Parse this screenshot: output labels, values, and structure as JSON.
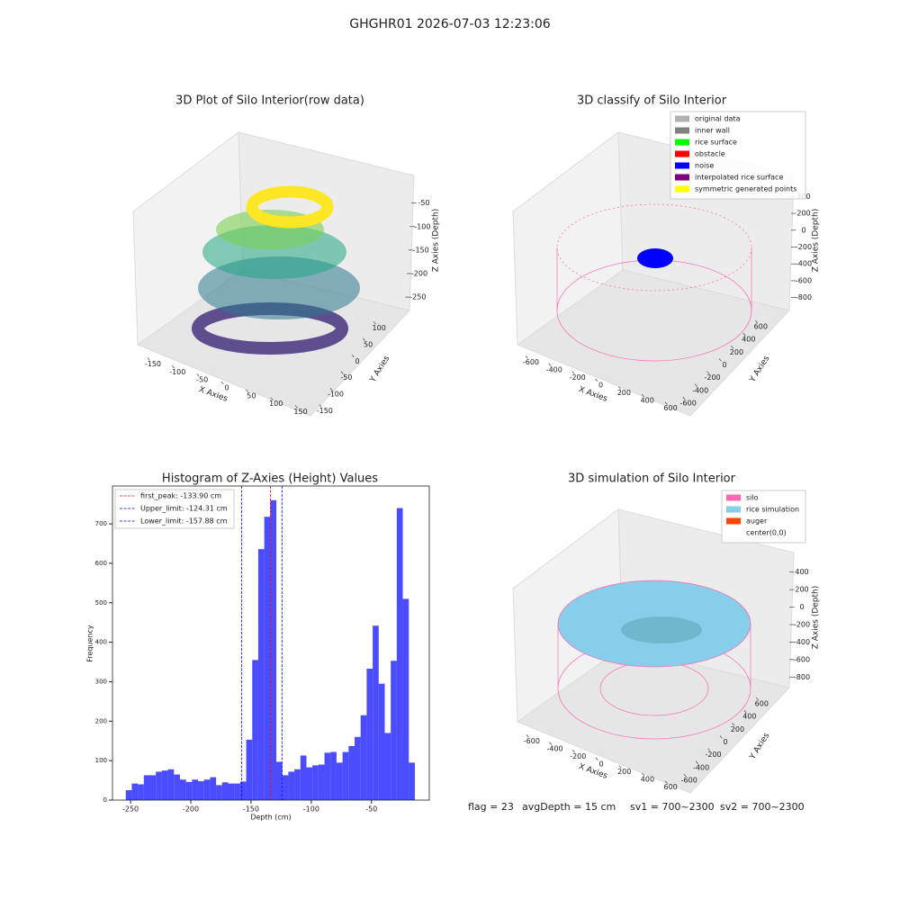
{
  "title": "GHGHR01 2026-07-03 12:23:06",
  "annotations": [
    "flag = 23",
    "avgDepth = 15 cm",
    "sv1 = 700~2300",
    "sv2 = 700~2300"
  ],
  "chart_data": [
    {
      "type": "scatter3d",
      "title": "3D Plot of Silo Interior(row data)",
      "xlabel": "X Axies",
      "ylabel": "Y Axies",
      "zlabel": "Z Axies (Depth)",
      "xlim": [
        -170,
        170
      ],
      "ylim": [
        -170,
        120
      ],
      "zlim": [
        -290,
        -20
      ],
      "xticks": [
        -150,
        -100,
        -50,
        0,
        50,
        100,
        150
      ],
      "yticks": [
        -150,
        -100,
        -50,
        0,
        50,
        100
      ],
      "zticks": [
        -250,
        -200,
        -150,
        -100,
        -50
      ]
    },
    {
      "type": "scatter3d",
      "title": "3D classify of Silo Interior",
      "xlabel": "X Axies",
      "ylabel": "Y Axies",
      "zlabel": "Z Axies (Depth)",
      "xlim": [
        -700,
        700
      ],
      "ylim": [
        -700,
        700
      ],
      "zlim": [
        -900,
        500
      ],
      "xticks": [
        -600,
        -400,
        -200,
        0,
        200,
        400,
        600
      ],
      "yticks": [
        -600,
        -400,
        -200,
        0,
        200,
        400,
        600
      ],
      "zticks": [
        -800,
        -600,
        -400,
        -200,
        0,
        200,
        400
      ],
      "series": [
        {
          "name": "original data",
          "color": "#b0b0b0"
        },
        {
          "name": "inner wall",
          "color": "#808080"
        },
        {
          "name": "rice surface",
          "color": "#00ff00"
        },
        {
          "name": "obstacle",
          "color": "#ff0000"
        },
        {
          "name": "noise",
          "color": "#0000ff"
        },
        {
          "name": "interpolated rice surface",
          "color": "#800080"
        },
        {
          "name": "symmetric generated points",
          "color": "#ffff00"
        }
      ]
    },
    {
      "type": "histogram",
      "title": "Histogram of Z-Axies (Height) Values",
      "xlabel": "Depth (cm)",
      "ylabel": "Frequency",
      "color": "#0000ff",
      "alpha": 0.7,
      "xlim": [
        -265,
        -2
      ],
      "ylim": [
        0,
        796
      ],
      "xticks": [
        -250,
        -200,
        -150,
        -100,
        -50
      ],
      "yticks": [
        0,
        100,
        200,
        300,
        400,
        500,
        600,
        700
      ],
      "bins": [
        -254,
        -249,
        -244,
        -239,
        -234,
        -229,
        -224,
        -219,
        -214,
        -209,
        -204,
        -199,
        -194,
        -189,
        -184,
        -179,
        -174,
        -169,
        -164,
        -159,
        -154,
        -149,
        -144,
        -139,
        -134,
        -129,
        -124,
        -119,
        -114,
        -109,
        -104,
        -99,
        -94,
        -89,
        -84,
        -79,
        -74,
        -69,
        -64,
        -59,
        -54,
        -49,
        -44,
        -39,
        -34,
        -29,
        -24,
        -19,
        -14
      ],
      "counts": [
        25,
        42,
        40,
        63,
        63,
        72,
        75,
        78,
        65,
        52,
        46,
        52,
        48,
        52,
        58,
        38,
        45,
        42,
        42,
        47,
        153,
        355,
        636,
        718,
        760,
        97,
        63,
        72,
        78,
        113,
        83,
        88,
        90,
        120,
        122,
        95,
        122,
        137,
        160,
        215,
        333,
        442,
        295,
        170,
        353,
        740,
        510,
        95
      ],
      "lines": [
        {
          "name": "first_peak: -133.90 cm",
          "value": -133.9,
          "color": "#ff0000"
        },
        {
          "name": "Upper_limit: -124.31 cm",
          "value": -124.31,
          "color": "#0000ff"
        },
        {
          "name": "Lower_limit: -157.88 cm",
          "value": -157.88,
          "color": "#0000ff"
        }
      ]
    },
    {
      "type": "surface3d",
      "title": "3D simulation of Silo Interior",
      "xlabel": "X Axies",
      "ylabel": "Y Axies",
      "zlabel": "Z Axies (Depth)",
      "xlim": [
        -700,
        700
      ],
      "ylim": [
        -700,
        700
      ],
      "zlim": [
        -900,
        500
      ],
      "xticks": [
        -600,
        -400,
        -200,
        0,
        200,
        400,
        600
      ],
      "yticks": [
        -600,
        -400,
        -200,
        0,
        200,
        400,
        600
      ],
      "zticks": [
        -800,
        -600,
        -400,
        -200,
        0,
        200,
        400
      ],
      "series": [
        {
          "name": "silo",
          "color": "#ff69b4"
        },
        {
          "name": "rice simulation",
          "color": "#87ceeb"
        },
        {
          "name": "auger",
          "color": "#ff4500"
        },
        {
          "name": "center(0,0)",
          "color": "#ffffff"
        }
      ]
    }
  ]
}
